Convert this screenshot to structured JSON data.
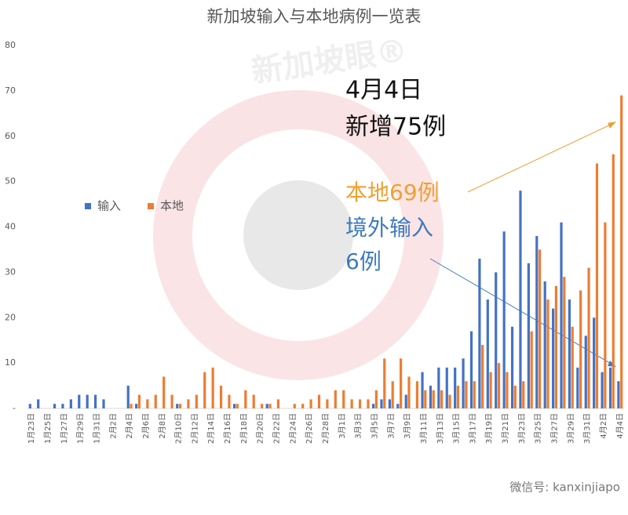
{
  "chart_data": {
    "type": "bar",
    "title": "新加坡输入与本地病例一览表",
    "categories": [
      "1月23日",
      null,
      "1月25日",
      null,
      "1月27日",
      null,
      "1月29日",
      null,
      "1月31日",
      null,
      "2月2日",
      null,
      "2月4日",
      null,
      "2月6日",
      null,
      "2月8日",
      null,
      "2月10日",
      null,
      "2月12日",
      null,
      "2月14日",
      null,
      "2月16日",
      null,
      "2月18日",
      null,
      "2月20日",
      null,
      "2月22日",
      null,
      "2月24日",
      null,
      "2月26日",
      null,
      "2月28日",
      null,
      "3月1日",
      null,
      "3月3日",
      null,
      "3月5日",
      null,
      "3月7日",
      null,
      "3月9日",
      null,
      "3月11日",
      null,
      "3月13日",
      null,
      "3月15日",
      null,
      "3月17日",
      null,
      "3月19日",
      null,
      "3月21日",
      null,
      "3月23日",
      null,
      "3月25日",
      null,
      "3月27日",
      null,
      "3月29日",
      null,
      "3月31日",
      null,
      "4月2日",
      null,
      "4月4日"
    ],
    "series": [
      {
        "name": "输入",
        "color": "#4472c4",
        "values": [
          1,
          2,
          0,
          1,
          1,
          2,
          3,
          3,
          3,
          2,
          0,
          0,
          5,
          1,
          0,
          0,
          0,
          0,
          1,
          0,
          0,
          0,
          0,
          0,
          0,
          1,
          0,
          0,
          0,
          1,
          0,
          0,
          0,
          0,
          0,
          0,
          0,
          0,
          0,
          0,
          0,
          0,
          1,
          2,
          2,
          1,
          3,
          0,
          8,
          5,
          9,
          9,
          9,
          11,
          17,
          33,
          24,
          30,
          39,
          18,
          48,
          32,
          38,
          28,
          22,
          41,
          24,
          9,
          16,
          20,
          8,
          9,
          6
        ]
      },
      {
        "name": "本地",
        "color": "#ed7d31",
        "values": [
          0,
          0,
          0,
          0,
          0,
          0,
          0,
          0,
          0,
          0,
          0,
          0,
          1,
          3,
          2,
          3,
          7,
          3,
          1,
          2,
          3,
          8,
          9,
          5,
          3,
          1,
          4,
          3,
          1,
          1,
          2,
          0,
          1,
          1,
          2,
          3,
          2,
          4,
          4,
          2,
          2,
          2,
          4,
          11,
          6,
          11,
          7,
          6,
          4,
          4,
          4,
          3,
          5,
          6,
          6,
          14,
          8,
          10,
          8,
          5,
          6,
          17,
          35,
          24,
          27,
          29,
          18,
          26,
          31,
          54,
          41,
          56,
          69
        ]
      }
    ],
    "ylim": [
      0,
      80
    ],
    "yticks": [
      {
        "value": 0,
        "label": "-"
      },
      10,
      20,
      30,
      40,
      50,
      60,
      70,
      80
    ],
    "legend": "left",
    "annotations": {
      "date": "4月4日",
      "total": "新增75例",
      "local": "本地69例",
      "imported_1": "境外输入",
      "imported_2": "6例"
    },
    "watermark": "新加坡眼®",
    "footer": "微信号: kanxinjiapo"
  }
}
